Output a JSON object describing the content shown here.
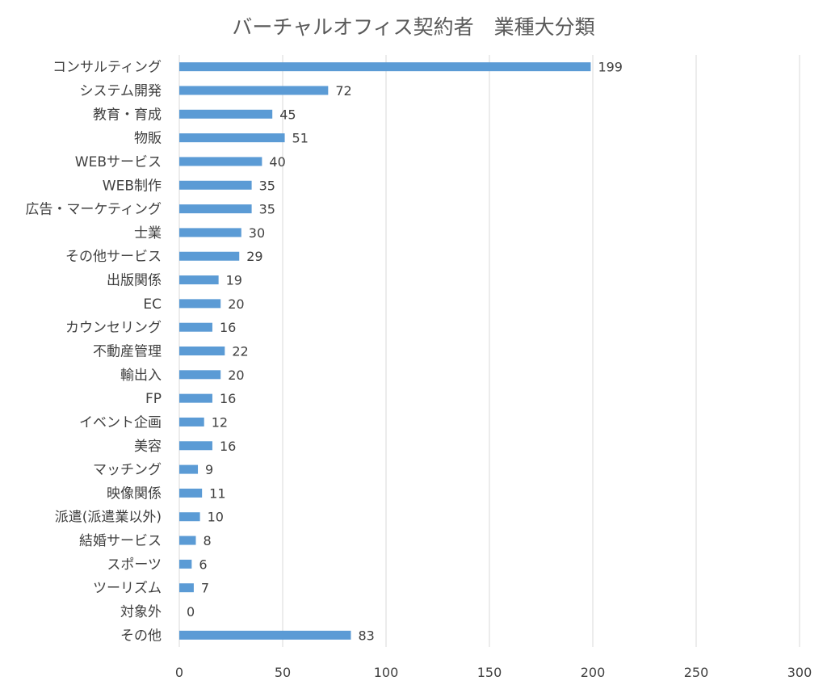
{
  "chart_data": {
    "type": "bar",
    "orientation": "horizontal",
    "title": "バーチャルオフィス契約者　業種大分類",
    "xlabel": "",
    "ylabel": "",
    "xlim": [
      0,
      300
    ],
    "x_ticks": [
      0,
      50,
      100,
      150,
      200,
      250,
      300
    ],
    "grid": true,
    "legend": "none",
    "bar_color": "#5b9bd5",
    "categories": [
      "コンサルティング",
      "システム開発",
      "教育・育成",
      "物販",
      "WEBサービス",
      "WEB制作",
      "広告・マーケティング",
      "士業",
      "その他サービス",
      "出版関係",
      "EC",
      "カウンセリング",
      "不動産管理",
      "輸出入",
      "FP",
      "イベント企画",
      "美容",
      "マッチング",
      "映像関係",
      "派遣(派遣業以外)",
      "結婚サービス",
      "スポーツ",
      "ツーリズム",
      "対象外",
      "その他"
    ],
    "values": [
      199,
      72,
      45,
      51,
      40,
      35,
      35,
      30,
      29,
      19,
      20,
      16,
      22,
      20,
      16,
      12,
      16,
      9,
      11,
      10,
      8,
      6,
      7,
      0,
      83
    ]
  }
}
